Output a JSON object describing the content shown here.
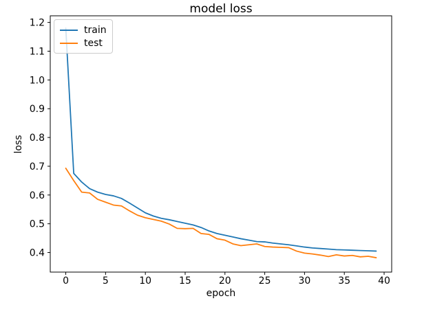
{
  "figure": {
    "title": "model loss",
    "xlabel": "epoch",
    "ylabel": "loss",
    "background_color": "#ffffff",
    "spine_color": "#000000"
  },
  "legend": {
    "position": "upper left",
    "items": [
      {
        "label": "train",
        "color": "#1f77b4"
      },
      {
        "label": "test",
        "color": "#ff7f0e"
      }
    ]
  },
  "chart_data": {
    "type": "line",
    "title": "model loss",
    "xlabel": "epoch",
    "ylabel": "loss",
    "grid": false,
    "legend_position": "upper left",
    "xlim": [
      -1.95,
      40.95
    ],
    "ylim": [
      0.332,
      1.223
    ],
    "xticks": [
      0,
      5,
      10,
      15,
      20,
      25,
      30,
      35,
      40
    ],
    "yticks": [
      0.4,
      0.5,
      0.6,
      0.7,
      0.8,
      0.9,
      1.0,
      1.1,
      1.2
    ],
    "x": [
      0,
      1,
      2,
      3,
      4,
      5,
      6,
      7,
      8,
      9,
      10,
      11,
      12,
      13,
      14,
      15,
      16,
      17,
      18,
      19,
      20,
      21,
      22,
      23,
      24,
      25,
      26,
      27,
      28,
      29,
      30,
      31,
      32,
      33,
      34,
      35,
      36,
      37,
      38,
      39
    ],
    "series": [
      {
        "name": "train",
        "color": "#1f77b4",
        "values": [
          1.18,
          0.675,
          0.645,
          0.622,
          0.61,
          0.602,
          0.597,
          0.588,
          0.572,
          0.555,
          0.538,
          0.527,
          0.519,
          0.514,
          0.508,
          0.502,
          0.496,
          0.487,
          0.475,
          0.466,
          0.46,
          0.454,
          0.448,
          0.443,
          0.438,
          0.437,
          0.433,
          0.43,
          0.427,
          0.423,
          0.419,
          0.416,
          0.414,
          0.412,
          0.41,
          0.409,
          0.408,
          0.407,
          0.406,
          0.405
        ]
      },
      {
        "name": "test",
        "color": "#ff7f0e",
        "values": [
          0.693,
          0.65,
          0.61,
          0.607,
          0.585,
          0.575,
          0.565,
          0.562,
          0.545,
          0.53,
          0.521,
          0.515,
          0.509,
          0.499,
          0.484,
          0.483,
          0.484,
          0.466,
          0.463,
          0.448,
          0.443,
          0.43,
          0.424,
          0.427,
          0.43,
          0.421,
          0.419,
          0.418,
          0.417,
          0.405,
          0.398,
          0.395,
          0.391,
          0.386,
          0.392,
          0.388,
          0.39,
          0.385,
          0.387,
          0.382
        ]
      }
    ]
  }
}
